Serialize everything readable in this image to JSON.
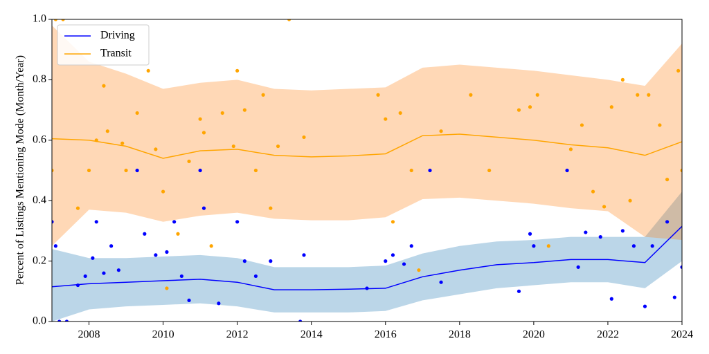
{
  "chart_data": {
    "type": "line",
    "ylabel": "Percent of Listings Mentioning Mode (Month/Year)",
    "xlim": [
      2007,
      2024
    ],
    "xticks": [
      2008,
      2010,
      2012,
      2014,
      2016,
      2018,
      2020,
      2022,
      2024
    ],
    "ylim": [
      0,
      1
    ],
    "yticks": [
      {
        "value": 0,
        "label": "0.0"
      },
      {
        "value": 0.2,
        "label": "0.2"
      },
      {
        "value": 0.4,
        "label": "0.4"
      },
      {
        "value": 0.6,
        "label": "0.6"
      },
      {
        "value": 0.8,
        "label": "0.8"
      },
      {
        "value": 1,
        "label": "1.0"
      }
    ],
    "legend": "upper left",
    "band_opacity": 0.3,
    "series": [
      {
        "name": "Driving",
        "color": "#0000ff",
        "band_color": "#1f77b4",
        "x": [
          2007,
          2008,
          2009,
          2010,
          2011,
          2012,
          2013,
          2014,
          2015,
          2016,
          2017,
          2018,
          2019,
          2020,
          2021,
          2022,
          2023,
          2024
        ],
        "values": [
          0.115,
          0.125,
          0.13,
          0.135,
          0.14,
          0.13,
          0.105,
          0.105,
          0.107,
          0.11,
          0.148,
          0.17,
          0.188,
          0.195,
          0.205,
          0.205,
          0.195,
          0.315
        ],
        "lower": [
          0.0,
          0.04,
          0.05,
          0.055,
          0.06,
          0.05,
          0.03,
          0.03,
          0.03,
          0.035,
          0.07,
          0.09,
          0.11,
          0.12,
          0.13,
          0.13,
          0.11,
          0.2
        ],
        "upper": [
          0.24,
          0.21,
          0.21,
          0.215,
          0.22,
          0.21,
          0.18,
          0.18,
          0.18,
          0.185,
          0.225,
          0.25,
          0.265,
          0.27,
          0.28,
          0.28,
          0.28,
          0.43
        ],
        "points": {
          "x": [
            2007.0,
            2007.1,
            2007.2,
            2007.4,
            2007.7,
            2007.9,
            2008.1,
            2008.2,
            2008.4,
            2008.6,
            2008.8,
            2009.3,
            2009.5,
            2009.8,
            2010.1,
            2010.3,
            2010.5,
            2010.7,
            2011.0,
            2011.1,
            2011.5,
            2012.0,
            2012.2,
            2012.5,
            2012.9,
            2013.7,
            2013.8,
            2015.5,
            2016.0,
            2016.2,
            2016.5,
            2016.7,
            2017.2,
            2017.5,
            2019.6,
            2019.9,
            2020.0,
            2020.9,
            2021.2,
            2021.4,
            2021.8,
            2022.1,
            2022.4,
            2022.7,
            2023.0,
            2023.2,
            2023.6,
            2023.8,
            2024.0
          ],
          "values": [
            0.33,
            0.25,
            0,
            0,
            0.12,
            0.15,
            0.21,
            0.33,
            0.16,
            0.25,
            0.17,
            0.5,
            0.29,
            0.22,
            0.23,
            0.33,
            0.15,
            0.07,
            0.5,
            0.375,
            0.06,
            0.33,
            0.2,
            0.15,
            0.2,
            0,
            0.22,
            0.11,
            0.2,
            0.22,
            0.19,
            0.25,
            0.5,
            0.13,
            0.1,
            0.29,
            0.25,
            0.5,
            0.18,
            0.295,
            0.28,
            0.075,
            0.3,
            0.25,
            0.05,
            0.25,
            0.33,
            0.08,
            0.18
          ]
        }
      },
      {
        "name": "Transit",
        "color": "#ffa500",
        "band_color": "#ff7f0e",
        "x": [
          2007,
          2008,
          2009,
          2010,
          2011,
          2012,
          2013,
          2014,
          2015,
          2016,
          2017,
          2018,
          2019,
          2020,
          2021,
          2022,
          2023,
          2024
        ],
        "values": [
          0.605,
          0.6,
          0.58,
          0.54,
          0.565,
          0.57,
          0.55,
          0.545,
          0.548,
          0.555,
          0.615,
          0.62,
          0.61,
          0.6,
          0.585,
          0.575,
          0.55,
          0.595
        ],
        "lower": [
          0.25,
          0.37,
          0.36,
          0.33,
          0.35,
          0.36,
          0.34,
          0.335,
          0.335,
          0.345,
          0.405,
          0.41,
          0.4,
          0.39,
          0.375,
          0.365,
          0.28,
          0.27
        ],
        "upper": [
          0.98,
          0.86,
          0.82,
          0.77,
          0.79,
          0.8,
          0.77,
          0.765,
          0.77,
          0.775,
          0.84,
          0.85,
          0.84,
          0.83,
          0.815,
          0.8,
          0.78,
          0.92
        ],
        "points": {
          "x": [
            2007.0,
            2007.1,
            2007.3,
            2007.7,
            2008.0,
            2008.2,
            2008.4,
            2008.5,
            2008.9,
            2009.0,
            2009.3,
            2009.6,
            2009.8,
            2010.0,
            2010.1,
            2010.4,
            2010.7,
            2011.0,
            2011.1,
            2011.3,
            2011.6,
            2011.9,
            2012.0,
            2012.2,
            2012.5,
            2012.7,
            2012.9,
            2013.1,
            2013.4,
            2013.8,
            2015.8,
            2016.0,
            2016.2,
            2016.4,
            2016.7,
            2016.9,
            2017.5,
            2018.3,
            2018.8,
            2019.6,
            2019.9,
            2020.1,
            2020.4,
            2021.0,
            2021.3,
            2021.6,
            2021.9,
            2022.1,
            2022.4,
            2022.6,
            2022.8,
            2023.1,
            2023.4,
            2023.6,
            2023.9,
            2024.0
          ],
          "values": [
            0.5,
            1,
            1,
            0.375,
            0.5,
            0.6,
            0.78,
            0.63,
            0.59,
            0.5,
            0.69,
            0.83,
            0.57,
            0.43,
            0.11,
            0.29,
            0.53,
            0.67,
            0.625,
            0.25,
            0.69,
            0.58,
            0.83,
            0.7,
            0.5,
            0.75,
            0.375,
            0.58,
            1,
            0.61,
            0.75,
            0.67,
            0.33,
            0.69,
            0.5,
            0.17,
            0.63,
            0.75,
            0.5,
            0.7,
            0.71,
            0.75,
            0.25,
            0.57,
            0.65,
            0.43,
            0.38,
            0.71,
            0.8,
            0.4,
            0.75,
            0.75,
            0.65,
            0.47,
            0.83,
            0.5
          ]
        }
      }
    ]
  }
}
